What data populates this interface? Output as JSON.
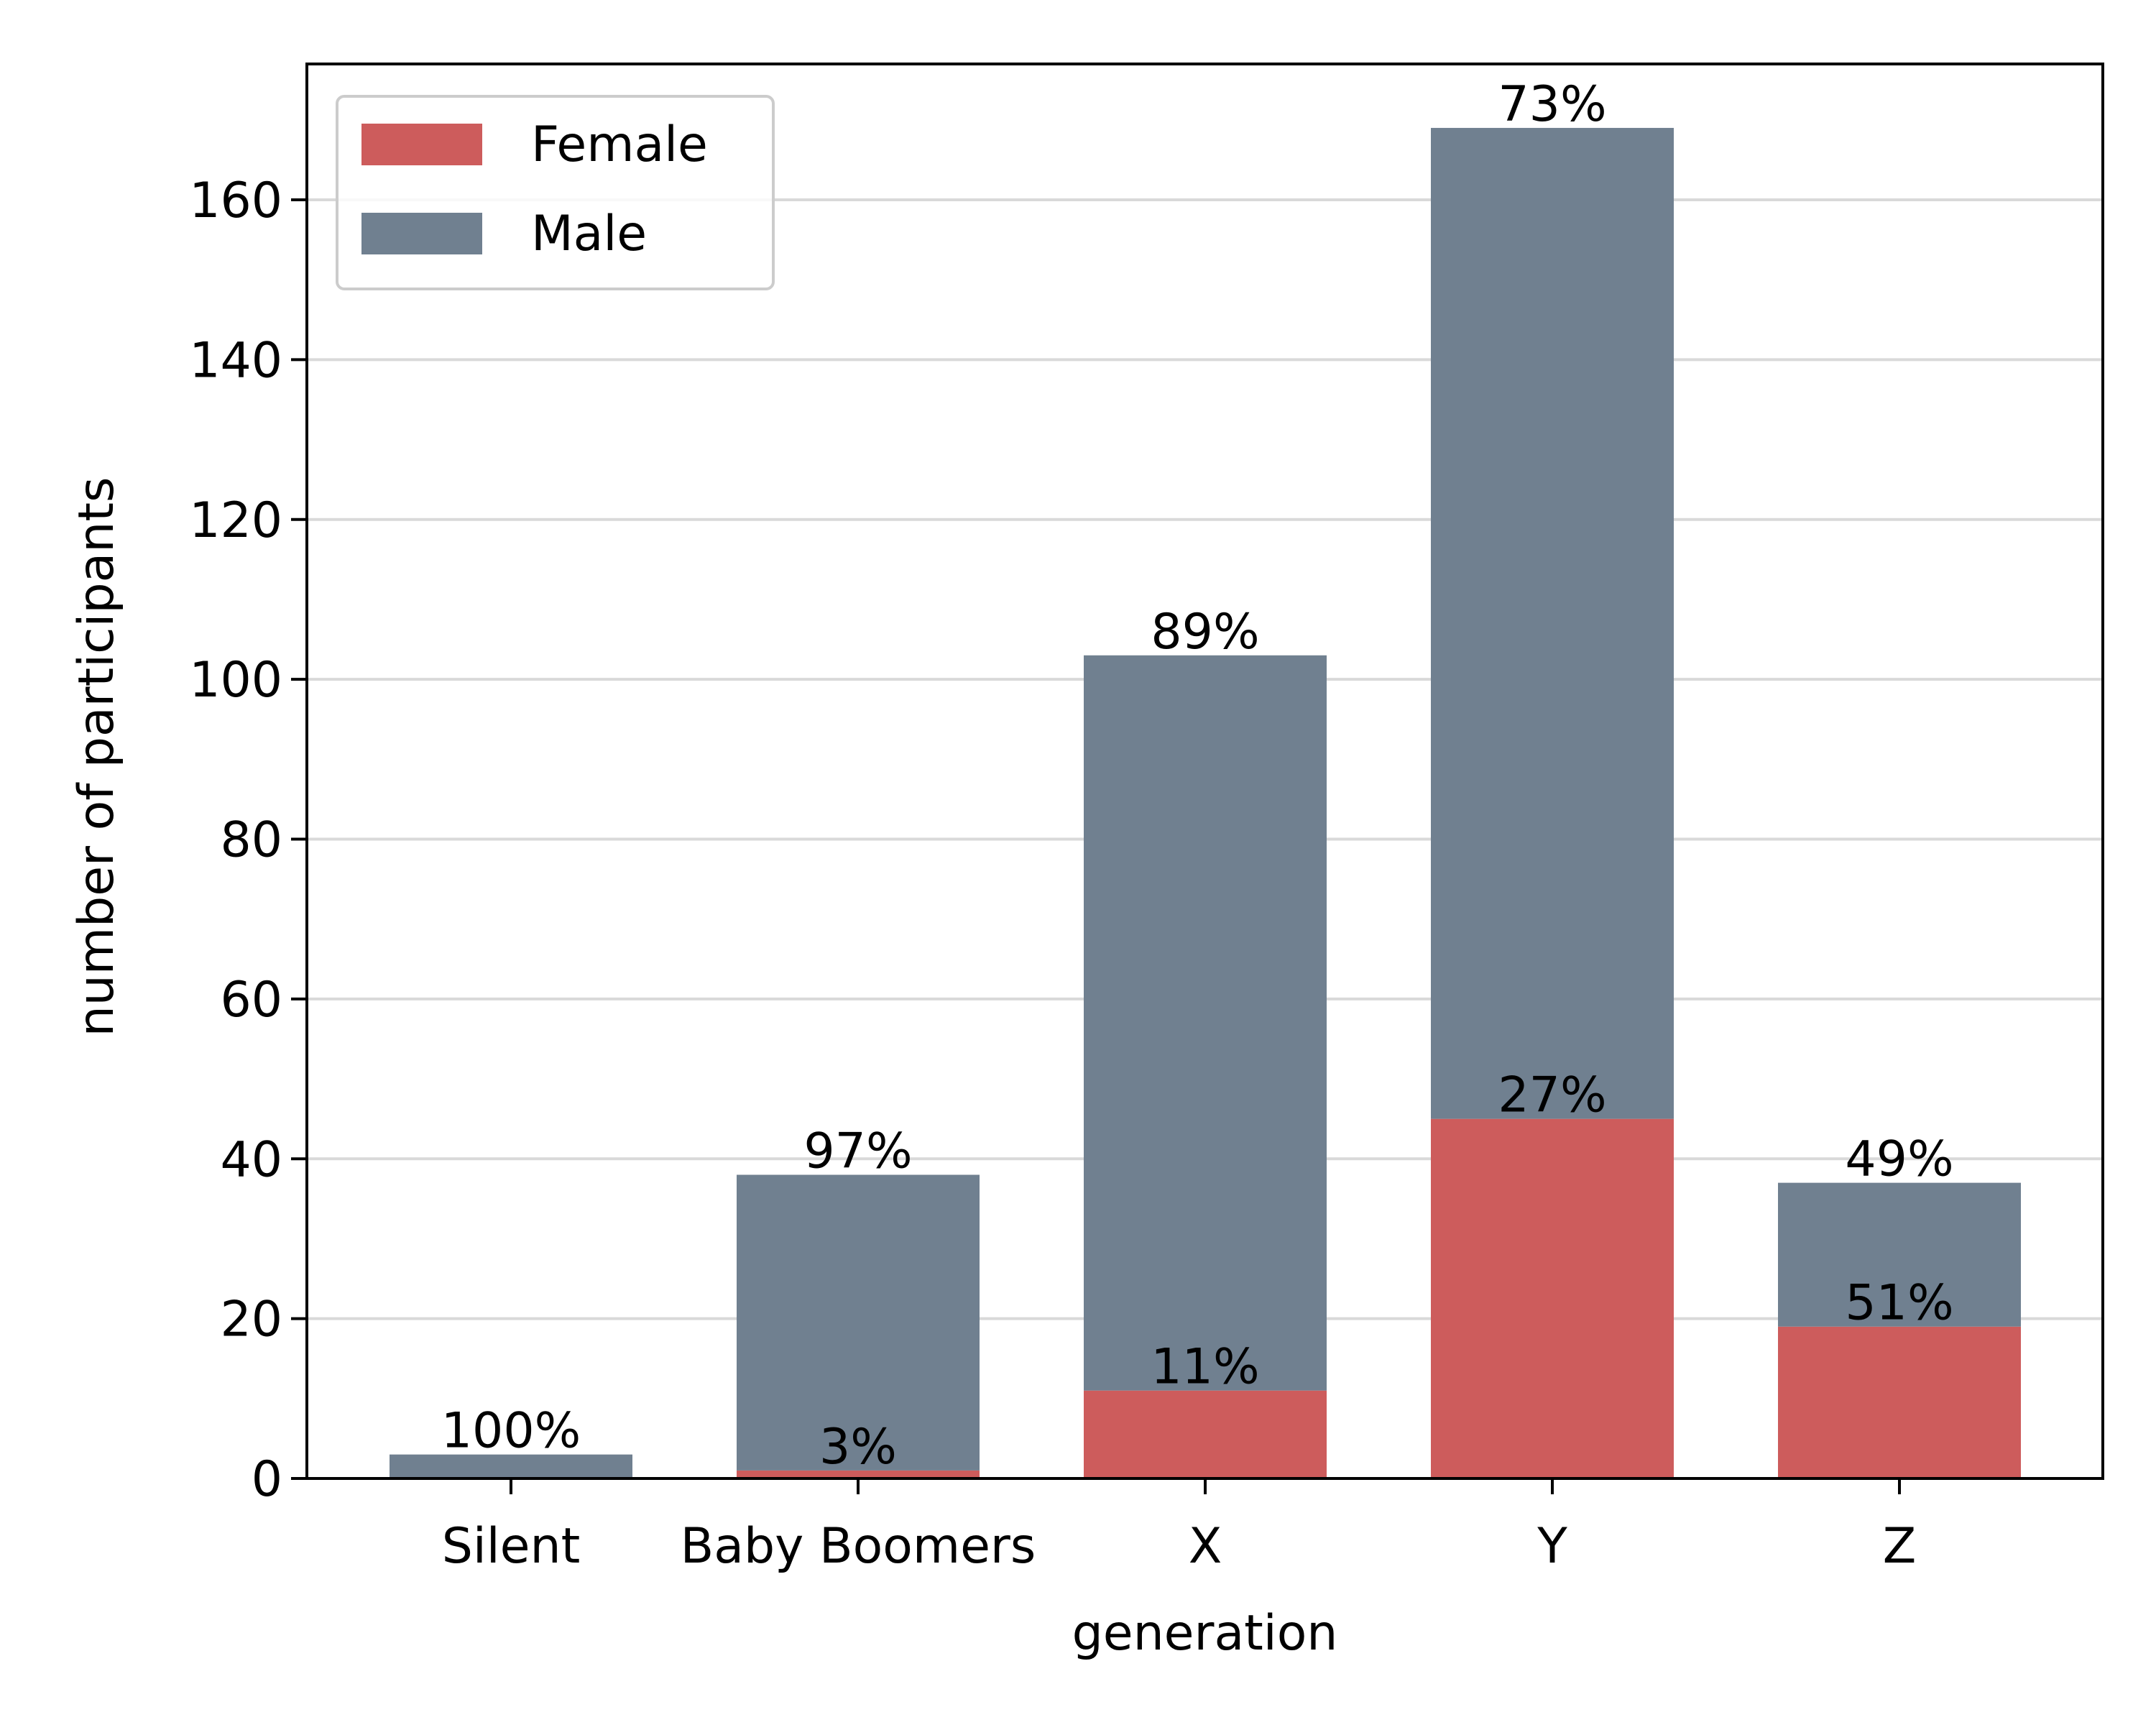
{
  "chart_data": {
    "type": "bar",
    "stacked": true,
    "categories": [
      "Silent",
      "Baby Boomers",
      "X",
      "Y",
      "Z"
    ],
    "series": [
      {
        "name": "Female",
        "color": "#cd5c5c",
        "values": [
          0,
          1,
          11,
          45,
          19
        ],
        "labels": [
          "",
          "3%",
          "11%",
          "27%",
          "51%"
        ]
      },
      {
        "name": "Male",
        "color": "#708090",
        "values": [
          3,
          37,
          92,
          124,
          18
        ],
        "labels": [
          "100%",
          "97%",
          "89%",
          "73%",
          "49%"
        ]
      }
    ],
    "xlabel": "generation",
    "ylabel": "number of participants",
    "ylim": [
      0,
      177
    ],
    "yticks": [
      0,
      20,
      40,
      60,
      80,
      100,
      120,
      140,
      160
    ],
    "grid": "horizontal",
    "legend": "top-left",
    "grid_color": "#d9d9d9"
  }
}
